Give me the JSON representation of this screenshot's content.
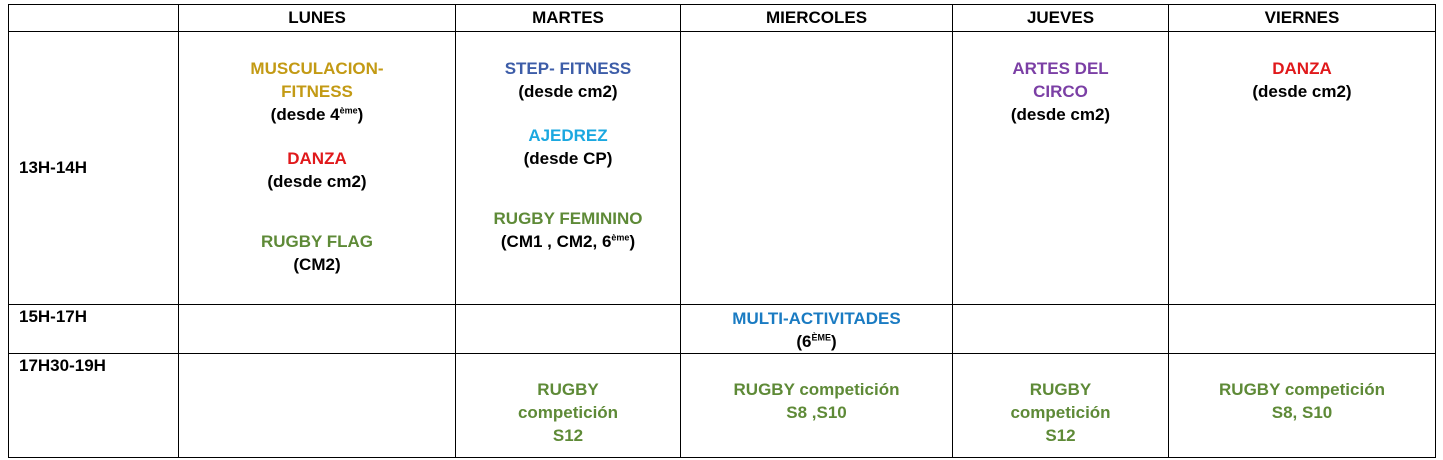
{
  "header": {
    "corner": "",
    "days": [
      "LUNES",
      "MARTES",
      "MIERCOLES",
      "JUEVES",
      "VIERNES"
    ]
  },
  "colors": {
    "gold": "#C39A14",
    "red": "#E0191B",
    "green": "#5E8A37",
    "steel_blue": "#3D5DA8",
    "cyan": "#1BA8E0",
    "blue": "#1A7BC2",
    "purple": "#7B3FA5"
  },
  "rows": {
    "r1": {
      "time": "13H-14H",
      "lunes": {
        "a1_line1": "MUSCULACION-",
        "a1_line2": "FITNESS",
        "a1_sub_pre": "(desde 4",
        "a1_sub_sup": "ème",
        "a1_sub_post": ")",
        "a2": "DANZA",
        "a2_sub": "(desde cm2)",
        "a3": "RUGBY FLAG",
        "a3_sub": "(CM2)"
      },
      "martes": {
        "a1": "STEP- FITNESS",
        "a1_sub": "(desde cm2)",
        "a2": "AJEDREZ",
        "a2_sub": "(desde CP)",
        "a3": "RUGBY FEMININO",
        "a3_sub_pre": "(CM1 , CM2, 6",
        "a3_sub_sup": "ème",
        "a3_sub_post": ")"
      },
      "jueves": {
        "a1_line1": "ARTES DEL",
        "a1_line2": "CIRCO",
        "a1_sub": "(desde cm2)"
      },
      "viernes": {
        "a1": "DANZA",
        "a1_sub": "(desde cm2)"
      }
    },
    "r2": {
      "time": "15H-17H",
      "miercoles": {
        "a1": "MULTI-ACTIVITADES",
        "a1_sub_pre": "(6",
        "a1_sub_sup": "ÈME",
        "a1_sub_post": ")"
      }
    },
    "r3": {
      "time": "17H30-19H",
      "martes": {
        "line1": "RUGBY",
        "line2": "competición",
        "line3": "S12"
      },
      "miercoles": {
        "line1": "RUGBY competición",
        "line2": "S8 ,S10"
      },
      "jueves": {
        "line1": "RUGBY",
        "line2": "competición",
        "line3": "S12"
      },
      "viernes": {
        "line1": "RUGBY competición",
        "line2": "S8, S10"
      }
    }
  }
}
